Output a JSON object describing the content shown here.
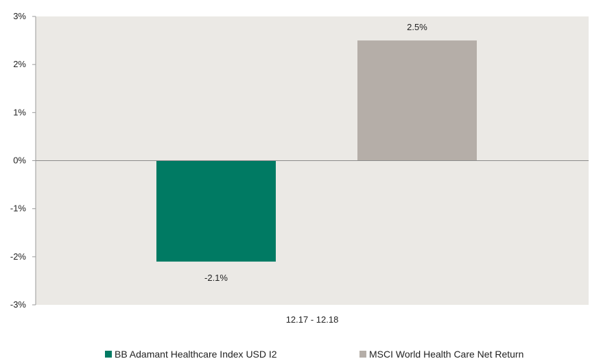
{
  "chart_data": {
    "type": "bar",
    "categories": [
      "12.17 - 12.18"
    ],
    "series": [
      {
        "name": "BB Adamant Healthcare Index USD I2",
        "values": [
          -2.1
        ],
        "label": "-2.1%",
        "color": "#007a63"
      },
      {
        "name": "MSCI World Health Care Net Return",
        "values": [
          2.5
        ],
        "label": "2.5%",
        "color": "#b5aea8"
      }
    ],
    "ylim": [
      -3,
      3
    ],
    "yticks": [
      3,
      2,
      1,
      0,
      -1,
      -2,
      -3
    ],
    "yticklabels": [
      "3%",
      "2%",
      "1%",
      "0%",
      "-1%",
      "-2%",
      "-3%"
    ],
    "title": "",
    "xlabel": "",
    "ylabel": "",
    "grid": false,
    "plot_background": "#ebe9e5",
    "legend_position": "bottom"
  }
}
